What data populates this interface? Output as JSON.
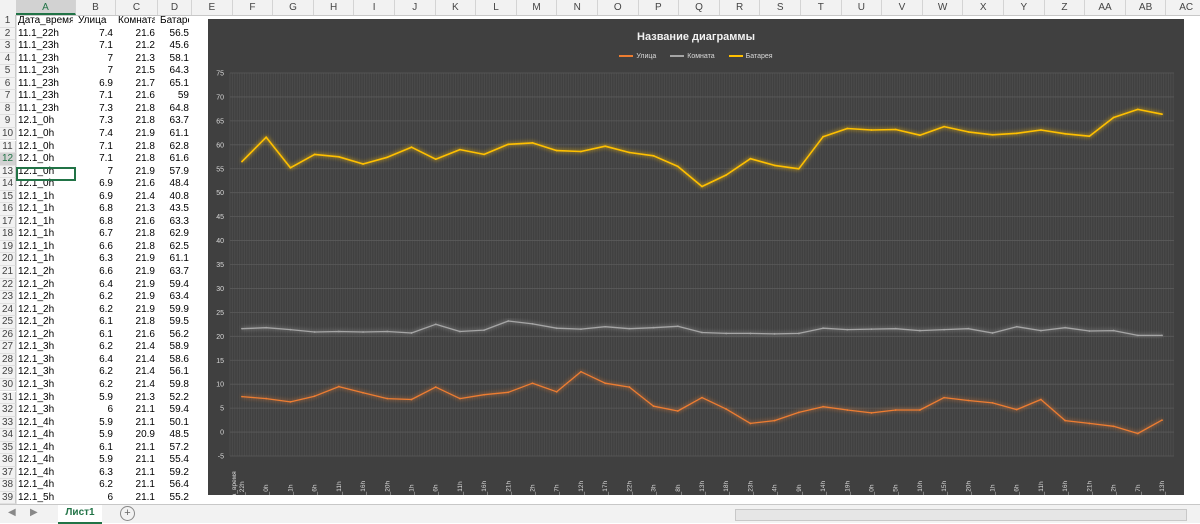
{
  "columns": [
    "A",
    "B",
    "C",
    "D",
    "E",
    "F",
    "G",
    "H",
    "I",
    "J",
    "K",
    "L",
    "M",
    "N",
    "O",
    "P",
    "Q",
    "R",
    "S",
    "T",
    "U",
    "V",
    "W",
    "X",
    "Y",
    "Z",
    "AA",
    "AB",
    "AC"
  ],
  "rows_visible": [
    1,
    2,
    3,
    4,
    5,
    6,
    7,
    8,
    9,
    10,
    11,
    12,
    13,
    14,
    15,
    16,
    17,
    18,
    19,
    20,
    21,
    22,
    23,
    24,
    25,
    26,
    27,
    28,
    29,
    30,
    31,
    32,
    33,
    34,
    35,
    36,
    37,
    38,
    39
  ],
  "header_row": [
    "Дата_время",
    "Улица",
    "Комната",
    "Батарея"
  ],
  "table": [
    [
      "11.1_22h",
      "7.4",
      "21.6",
      "56.5"
    ],
    [
      "11.1_23h",
      "7.1",
      "21.2",
      "45.6"
    ],
    [
      "11.1_23h",
      "7",
      "21.3",
      "58.1"
    ],
    [
      "11.1_23h",
      "7",
      "21.5",
      "64.3"
    ],
    [
      "11.1_23h",
      "6.9",
      "21.7",
      "65.1"
    ],
    [
      "11.1_23h",
      "7.1",
      "21.6",
      "59"
    ],
    [
      "11.1_23h",
      "7.3",
      "21.8",
      "64.8"
    ],
    [
      "12.1_0h",
      "7.3",
      "21.8",
      "63.7"
    ],
    [
      "12.1_0h",
      "7.4",
      "21.9",
      "61.1"
    ],
    [
      "12.1_0h",
      "7.1",
      "21.8",
      "62.8"
    ],
    [
      "12.1_0h",
      "7.1",
      "21.8",
      "61.6"
    ],
    [
      "12.1_0h",
      "7",
      "21.9",
      "57.9"
    ],
    [
      "12.1_0h",
      "6.9",
      "21.6",
      "48.4"
    ],
    [
      "12.1_1h",
      "6.9",
      "21.4",
      "40.8"
    ],
    [
      "12.1_1h",
      "6.8",
      "21.3",
      "43.5"
    ],
    [
      "12.1_1h",
      "6.8",
      "21.6",
      "63.3"
    ],
    [
      "12.1_1h",
      "6.7",
      "21.8",
      "62.9"
    ],
    [
      "12.1_1h",
      "6.6",
      "21.8",
      "62.5"
    ],
    [
      "12.1_1h",
      "6.3",
      "21.9",
      "61.1"
    ],
    [
      "12.1_2h",
      "6.6",
      "21.9",
      "63.7"
    ],
    [
      "12.1_2h",
      "6.4",
      "21.9",
      "59.4"
    ],
    [
      "12.1_2h",
      "6.2",
      "21.9",
      "63.4"
    ],
    [
      "12.1_2h",
      "6.2",
      "21.9",
      "59.9"
    ],
    [
      "12.1_2h",
      "6.1",
      "21.8",
      "59.5"
    ],
    [
      "12.1_2h",
      "6.1",
      "21.6",
      "56.2"
    ],
    [
      "12.1_3h",
      "6.2",
      "21.4",
      "58.9"
    ],
    [
      "12.1_3h",
      "6.4",
      "21.4",
      "58.6"
    ],
    [
      "12.1_3h",
      "6.2",
      "21.4",
      "56.1"
    ],
    [
      "12.1_3h",
      "6.2",
      "21.4",
      "59.8"
    ],
    [
      "12.1_3h",
      "5.9",
      "21.3",
      "52.2"
    ],
    [
      "12.1_3h",
      "6",
      "21.1",
      "59.4"
    ],
    [
      "12.1_4h",
      "5.9",
      "21.1",
      "50.1"
    ],
    [
      "12.1_4h",
      "5.9",
      "20.9",
      "48.5"
    ],
    [
      "12.1_4h",
      "6.1",
      "21.1",
      "57.2"
    ],
    [
      "12.1_4h",
      "5.9",
      "21.1",
      "55.4"
    ],
    [
      "12.1_4h",
      "6.3",
      "21.1",
      "59.2"
    ],
    [
      "12.1_4h",
      "6.2",
      "21.1",
      "56.4"
    ],
    [
      "12.1_5h",
      "6",
      "21.1",
      "55.2"
    ]
  ],
  "sheet_tab": "Лист1",
  "add_sheet_symbol": "+",
  "nav_prev": "◀",
  "nav_next": "▶",
  "chart_data": {
    "type": "line",
    "title": "Название диаграммы",
    "xlabel": "Дата_время",
    "ylim": [
      -5,
      75
    ],
    "yticks": [
      -5,
      0,
      5,
      10,
      15,
      20,
      25,
      30,
      35,
      40,
      45,
      50,
      55,
      60,
      65,
      70,
      75
    ],
    "grid": true,
    "legend_position": "top",
    "x": [
      "11.1_22h",
      "12.1_0h",
      "12.1_1h",
      "12.1_6h",
      "12.1_11h",
      "12.1_16h",
      "12.1_20h",
      "13.1_1h",
      "13.1_6h",
      "13.1_11h",
      "13.1_16h",
      "13.1_21h",
      "14.1_2h",
      "14.1_7h",
      "14.1_12h",
      "14.1_17h",
      "14.1_22h",
      "15.1_3h",
      "15.1_8h",
      "15.1_13h",
      "15.1_18h",
      "15.1_23h",
      "16.1_4h",
      "16.1_9h",
      "16.1_14h",
      "16.1_19h",
      "17.1_0h",
      "17.1_5h",
      "17.1_10h",
      "17.1_15h",
      "17.1_20h",
      "18.1_1h",
      "18.1_6h",
      "18.1_11h",
      "18.1_16h",
      "18.1_21h",
      "19.1_2h",
      "19.1_7h",
      "19.1_13h"
    ],
    "series": [
      {
        "name": "Улица",
        "color": "#ed7d31",
        "values": [
          7.4,
          7,
          6.3,
          7.5,
          9.5,
          8.2,
          7,
          6.8,
          9.4,
          7,
          7.8,
          8.3,
          10.2,
          8.4,
          12.6,
          10.2,
          9.4,
          5.4,
          4.4,
          7.2,
          4.8,
          1.8,
          2.4,
          4.1,
          5.3,
          4.6,
          4,
          4.6,
          4.6,
          7.2,
          6.6,
          6.1,
          4.7,
          6.8,
          2.4,
          1.8,
          1.2,
          -0.3,
          2.5
        ]
      },
      {
        "name": "Комната",
        "color": "#a5a5a5",
        "values": [
          21.6,
          21.8,
          21.4,
          20.9,
          21,
          20.9,
          21,
          20.7,
          22.5,
          21,
          21.3,
          23.2,
          22.6,
          21.7,
          21.5,
          22,
          21.6,
          21.8,
          22.1,
          20.8,
          20.6,
          20.6,
          20.5,
          20.6,
          21.7,
          21.4,
          21.5,
          21.6,
          21.2,
          21.4,
          21.6,
          20.7,
          22,
          21.2,
          21.8,
          21.1,
          21.2,
          20.2,
          20.2
        ]
      },
      {
        "name": "Батарея",
        "color": "#ffc000",
        "values": [
          56.5,
          61.6,
          55.2,
          58,
          57.5,
          56,
          57.4,
          59.5,
          57,
          59,
          58,
          60.1,
          60.4,
          58.8,
          58.6,
          59.7,
          58.4,
          57.7,
          55.5,
          51.3,
          53.7,
          57.1,
          55.7,
          55,
          61.7,
          63.4,
          63.1,
          63.2,
          62,
          63.8,
          62.7,
          62.1,
          62.4,
          63.1,
          62.3,
          61.8,
          65.7,
          67.4,
          66.4
        ]
      }
    ]
  }
}
